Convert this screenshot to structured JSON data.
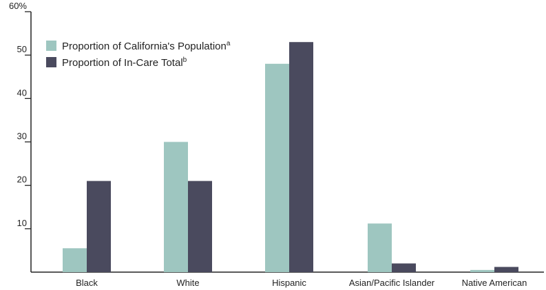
{
  "chart_data": {
    "type": "bar",
    "categories": [
      "Black",
      "White",
      "Hispanic",
      "Asian/Pacific Islander",
      "Native American"
    ],
    "series": [
      {
        "name": "Proportion of California's Population",
        "footnote": "a",
        "color": "#9ec6c0",
        "values": [
          5.5,
          30,
          48,
          11.2,
          0.5
        ]
      },
      {
        "name": "Proportion of In-Care Total",
        "footnote": "b",
        "color": "#4a4a5e",
        "values": [
          21,
          21,
          53,
          2,
          1.2
        ]
      }
    ],
    "y_ticks": [
      {
        "value": 10,
        "label": "10"
      },
      {
        "value": 20,
        "label": "20"
      },
      {
        "value": 30,
        "label": "30"
      },
      {
        "value": 40,
        "label": "40"
      },
      {
        "value": 50,
        "label": "50"
      },
      {
        "value": 60,
        "label": "60%"
      }
    ],
    "ylim": [
      0,
      60
    ],
    "grid": false,
    "legend_position": "top-left",
    "title": "",
    "xlabel": "",
    "ylabel": ""
  }
}
